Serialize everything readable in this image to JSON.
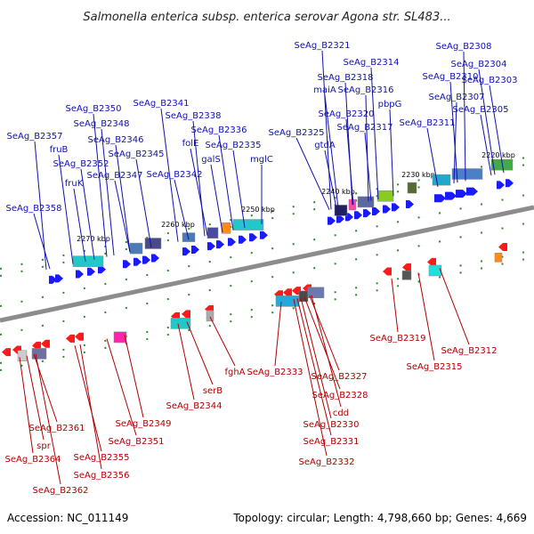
{
  "title": "Salmonella enterica subsp. enterica serovar Agona str. SL483...",
  "footer": {
    "accession": "Accession: NC_011149",
    "topology": "Topology: circular; Length: 4,798,660 bp; Genes: 4,669"
  },
  "colors": {
    "forward_label": "#1010b0",
    "reverse_label": "#b00000",
    "forward_gene": "#1a1aff",
    "reverse_gene": "#ff1a1a",
    "backbone": "#8c8c8c"
  },
  "kbp_ticks": [
    "2220 kbp",
    "2230 kbp",
    "2240 kbp",
    "2250 kbp",
    "2260 kbp",
    "2270 kbp"
  ],
  "forward_labels": [
    "SeAg_B2321",
    "SeAg_B2308",
    "SeAg_B2314",
    "SeAg_B2304",
    "SeAg_B2318",
    "SeAg_B2310",
    "SeAg_B2303",
    "maiA",
    "SeAg_B2316",
    "SeAg_B2307",
    "pbpG",
    "SeAg_B2305",
    "SeAg_B2320",
    "SeAg_B2311",
    "SeAg_B2317",
    "SeAg_B2350",
    "SeAg_B2341",
    "SeAg_B2338",
    "SeAg_B2348",
    "SeAg_B2336",
    "SeAg_B2325",
    "SeAg_B2357",
    "SeAg_B2346",
    "folE",
    "SeAg_B2335",
    "fruB",
    "SeAg_B2345",
    "galS",
    "mglC",
    "gtdA",
    "SeAg_B2352",
    "fruK",
    "SeAg_B2347",
    "SeAg_B2342",
    "SeAg_B2358"
  ],
  "reverse_labels": [
    "SeAg_B2319",
    "SeAg_B2312",
    "SeAg_B2315",
    "fghA",
    "SeAg_B2333",
    "SeAg_B2327",
    "serB",
    "SeAg_B2328",
    "SeAg_B2344",
    "cdd",
    "SeAg_B2349",
    "SeAg_B2330",
    "SeAg_B2361",
    "SeAg_B2331",
    "SeAg_B2351",
    "spr",
    "SeAg_B2332",
    "SeAg_B2364",
    "SeAg_B2355",
    "SeAg_B2356",
    "SeAg_B2362"
  ]
}
